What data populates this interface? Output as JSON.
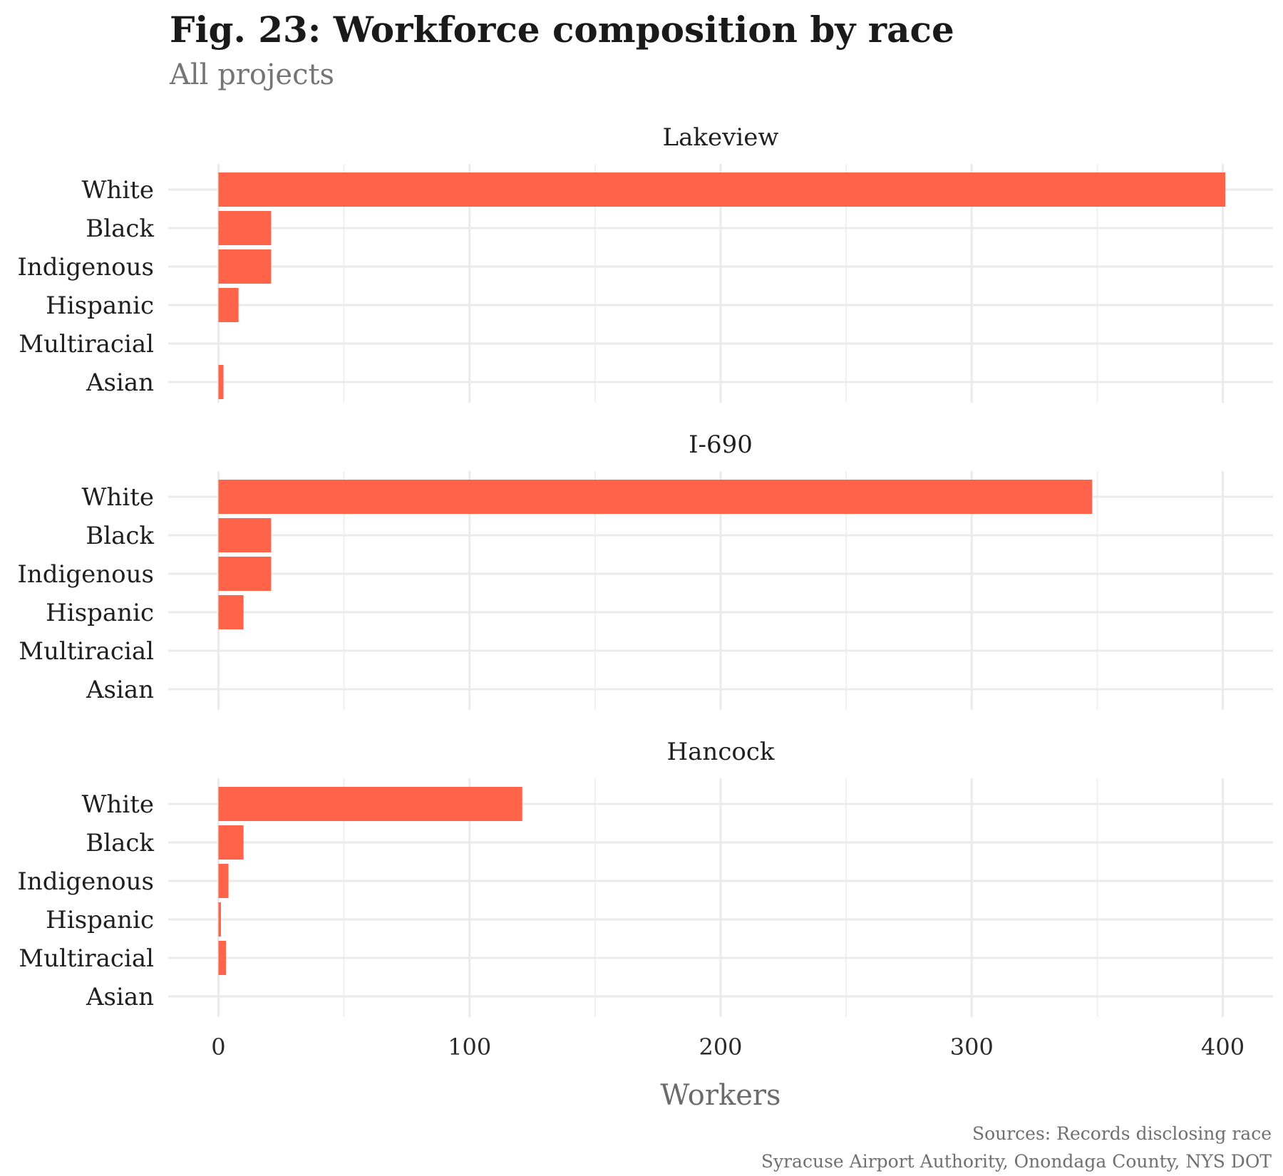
{
  "title": "Fig. 23: Workforce composition by race",
  "subtitle": "All projects",
  "caption": {
    "line1": "Sources: Records disclosing race",
    "line2": "Syracuse Airport Authority, Onondaga County, NYS DOT"
  },
  "colors": {
    "bar": "#ff634a",
    "grid": "#ebebeb"
  },
  "chart_data": {
    "type": "bar",
    "orientation": "horizontal",
    "xlabel": "Workers",
    "ylabel": "",
    "xlim": [
      -20,
      420
    ],
    "xticks": [
      0,
      100,
      200,
      300,
      400
    ],
    "grid": true,
    "categories": [
      "White",
      "Black",
      "Indigenous",
      "Hispanic",
      "Multiracial",
      "Asian"
    ],
    "panels": [
      {
        "name": "Lakeview",
        "values": [
          401,
          21,
          21,
          8,
          0,
          2
        ]
      },
      {
        "name": "I-690",
        "values": [
          348,
          21,
          21,
          10,
          0,
          0
        ]
      },
      {
        "name": "Hancock",
        "values": [
          121,
          10,
          4,
          1,
          3,
          0
        ]
      }
    ]
  }
}
